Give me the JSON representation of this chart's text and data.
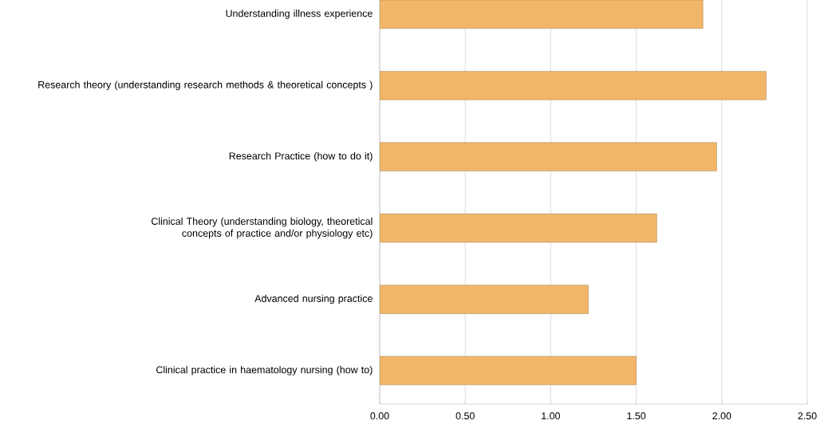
{
  "chart_data": {
    "type": "bar",
    "orientation": "horizontal",
    "categories": [
      "Understanding illness experience",
      "Research theory (understanding research methods & theoretical concepts )",
      "Research Practice (how to do it)",
      "Clinical Theory (understanding biology, theoretical concepts of practice and/or physiology etc)",
      "Advanced  nursing practice",
      "Clinical practice in haematology nursing (how to)"
    ],
    "values": [
      1.89,
      2.26,
      1.97,
      1.62,
      1.22,
      1.5
    ],
    "color": "#f2b669",
    "xlim": [
      0,
      2.5
    ],
    "xticks": [
      {
        "value": 0,
        "label": "0.00"
      },
      {
        "value": 0.5,
        "label": "0.50"
      },
      {
        "value": 1,
        "label": "1.00"
      },
      {
        "value": 1.5,
        "label": "1.50"
      },
      {
        "value": 2,
        "label": "2.00"
      },
      {
        "value": 2.5,
        "label": "2.50"
      }
    ],
    "grid": "x"
  }
}
